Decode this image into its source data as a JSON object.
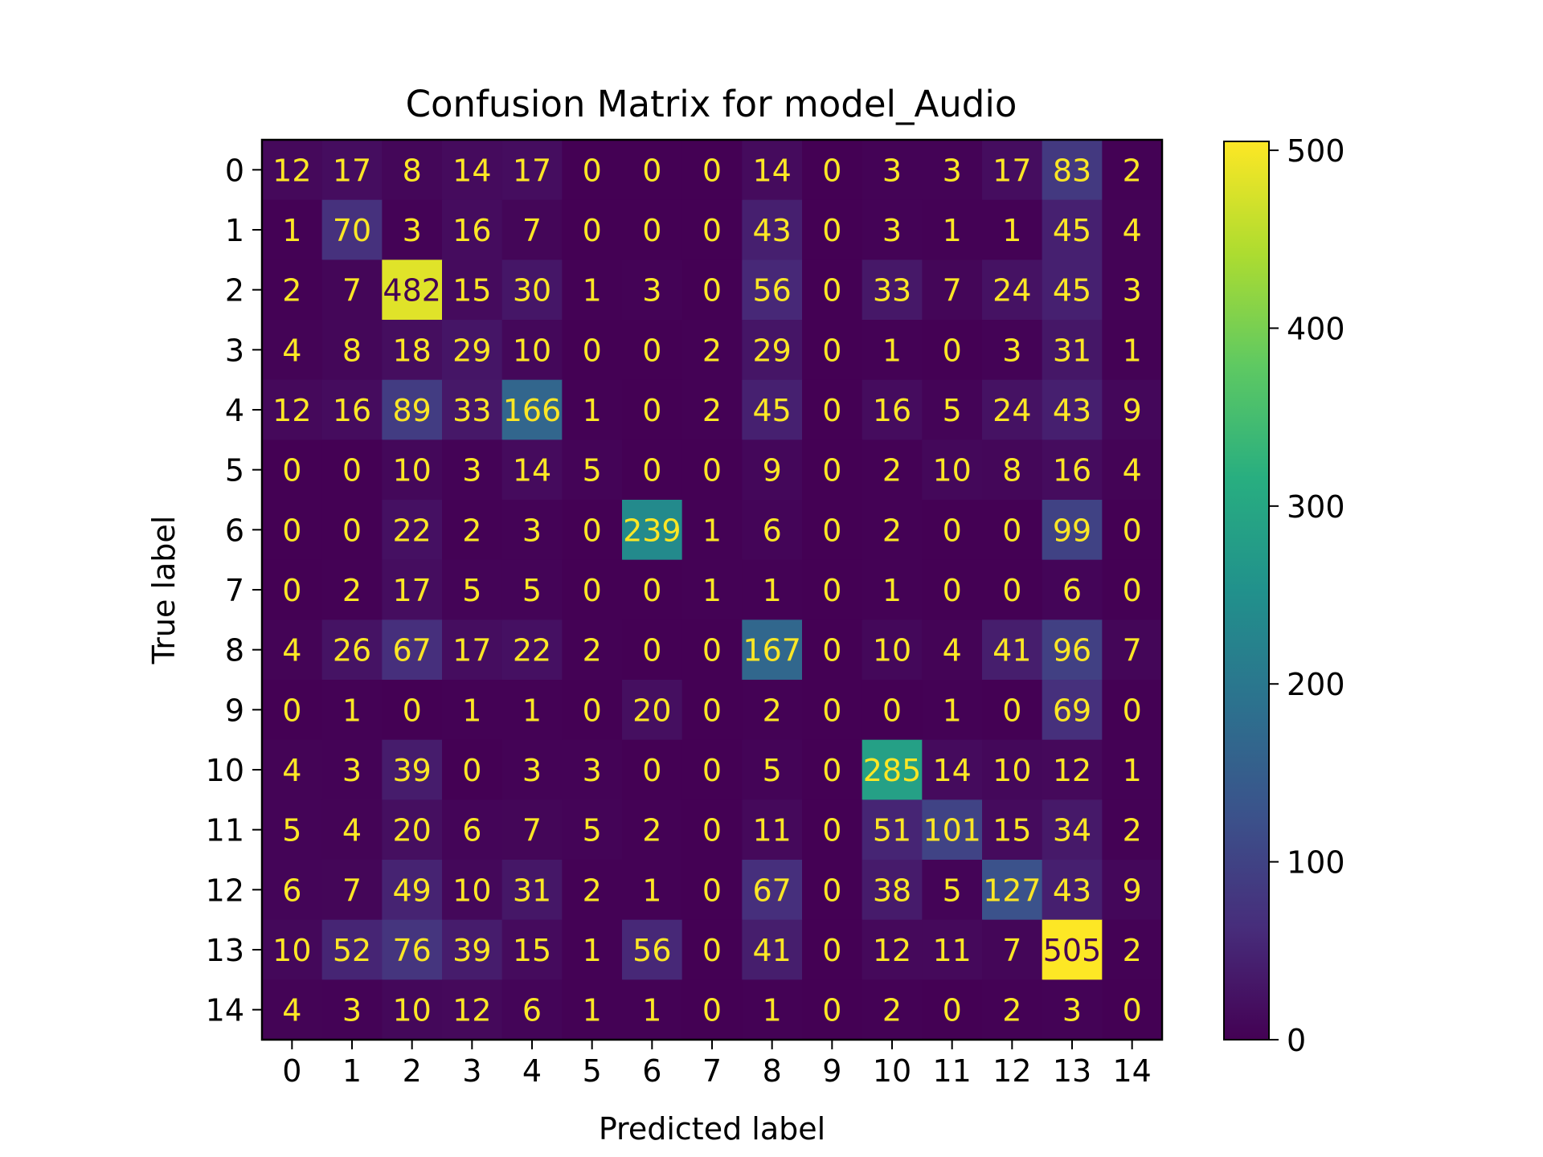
{
  "chart_data": {
    "type": "heatmap",
    "title": "Confusion Matrix for model_Audio",
    "xlabel": "Predicted label",
    "ylabel": "True label",
    "x_categories": [
      "0",
      "1",
      "2",
      "3",
      "4",
      "5",
      "6",
      "7",
      "8",
      "9",
      "10",
      "11",
      "12",
      "13",
      "14"
    ],
    "y_categories": [
      "0",
      "1",
      "2",
      "3",
      "4",
      "5",
      "6",
      "7",
      "8",
      "9",
      "10",
      "11",
      "12",
      "13",
      "14"
    ],
    "values": [
      [
        12,
        17,
        8,
        14,
        17,
        0,
        0,
        0,
        14,
        0,
        3,
        3,
        17,
        83,
        2
      ],
      [
        1,
        70,
        3,
        16,
        7,
        0,
        0,
        0,
        43,
        0,
        3,
        1,
        1,
        45,
        4
      ],
      [
        2,
        7,
        482,
        15,
        30,
        1,
        3,
        0,
        56,
        0,
        33,
        7,
        24,
        45,
        3
      ],
      [
        4,
        8,
        18,
        29,
        10,
        0,
        0,
        2,
        29,
        0,
        1,
        0,
        3,
        31,
        1
      ],
      [
        12,
        16,
        89,
        33,
        166,
        1,
        0,
        2,
        45,
        0,
        16,
        5,
        24,
        43,
        9
      ],
      [
        0,
        0,
        10,
        3,
        14,
        5,
        0,
        0,
        9,
        0,
        2,
        10,
        8,
        16,
        4
      ],
      [
        0,
        0,
        22,
        2,
        3,
        0,
        239,
        1,
        6,
        0,
        2,
        0,
        0,
        99,
        0
      ],
      [
        0,
        2,
        17,
        5,
        5,
        0,
        0,
        1,
        1,
        0,
        1,
        0,
        0,
        6,
        0
      ],
      [
        4,
        26,
        67,
        17,
        22,
        2,
        0,
        0,
        167,
        0,
        10,
        4,
        41,
        96,
        7
      ],
      [
        0,
        1,
        0,
        1,
        1,
        0,
        20,
        0,
        2,
        0,
        0,
        1,
        0,
        69,
        0
      ],
      [
        4,
        3,
        39,
        0,
        3,
        3,
        0,
        0,
        5,
        0,
        285,
        14,
        10,
        12,
        1
      ],
      [
        5,
        4,
        20,
        6,
        7,
        5,
        2,
        0,
        11,
        0,
        51,
        101,
        15,
        34,
        2
      ],
      [
        6,
        7,
        49,
        10,
        31,
        2,
        1,
        0,
        67,
        0,
        38,
        5,
        127,
        43,
        9
      ],
      [
        10,
        52,
        76,
        39,
        15,
        1,
        56,
        0,
        41,
        0,
        12,
        11,
        7,
        505,
        2
      ],
      [
        4,
        3,
        10,
        12,
        6,
        1,
        1,
        0,
        1,
        0,
        2,
        0,
        2,
        3,
        0
      ]
    ],
    "colormap": "viridis",
    "vmin": 0,
    "vmax": 505,
    "colorbar_ticks": [
      0,
      100,
      200,
      300,
      400,
      500
    ],
    "colors": {
      "text_light": "#fde725",
      "text_dark": "#440154"
    },
    "grid": false,
    "legend": "colorbar-right"
  }
}
